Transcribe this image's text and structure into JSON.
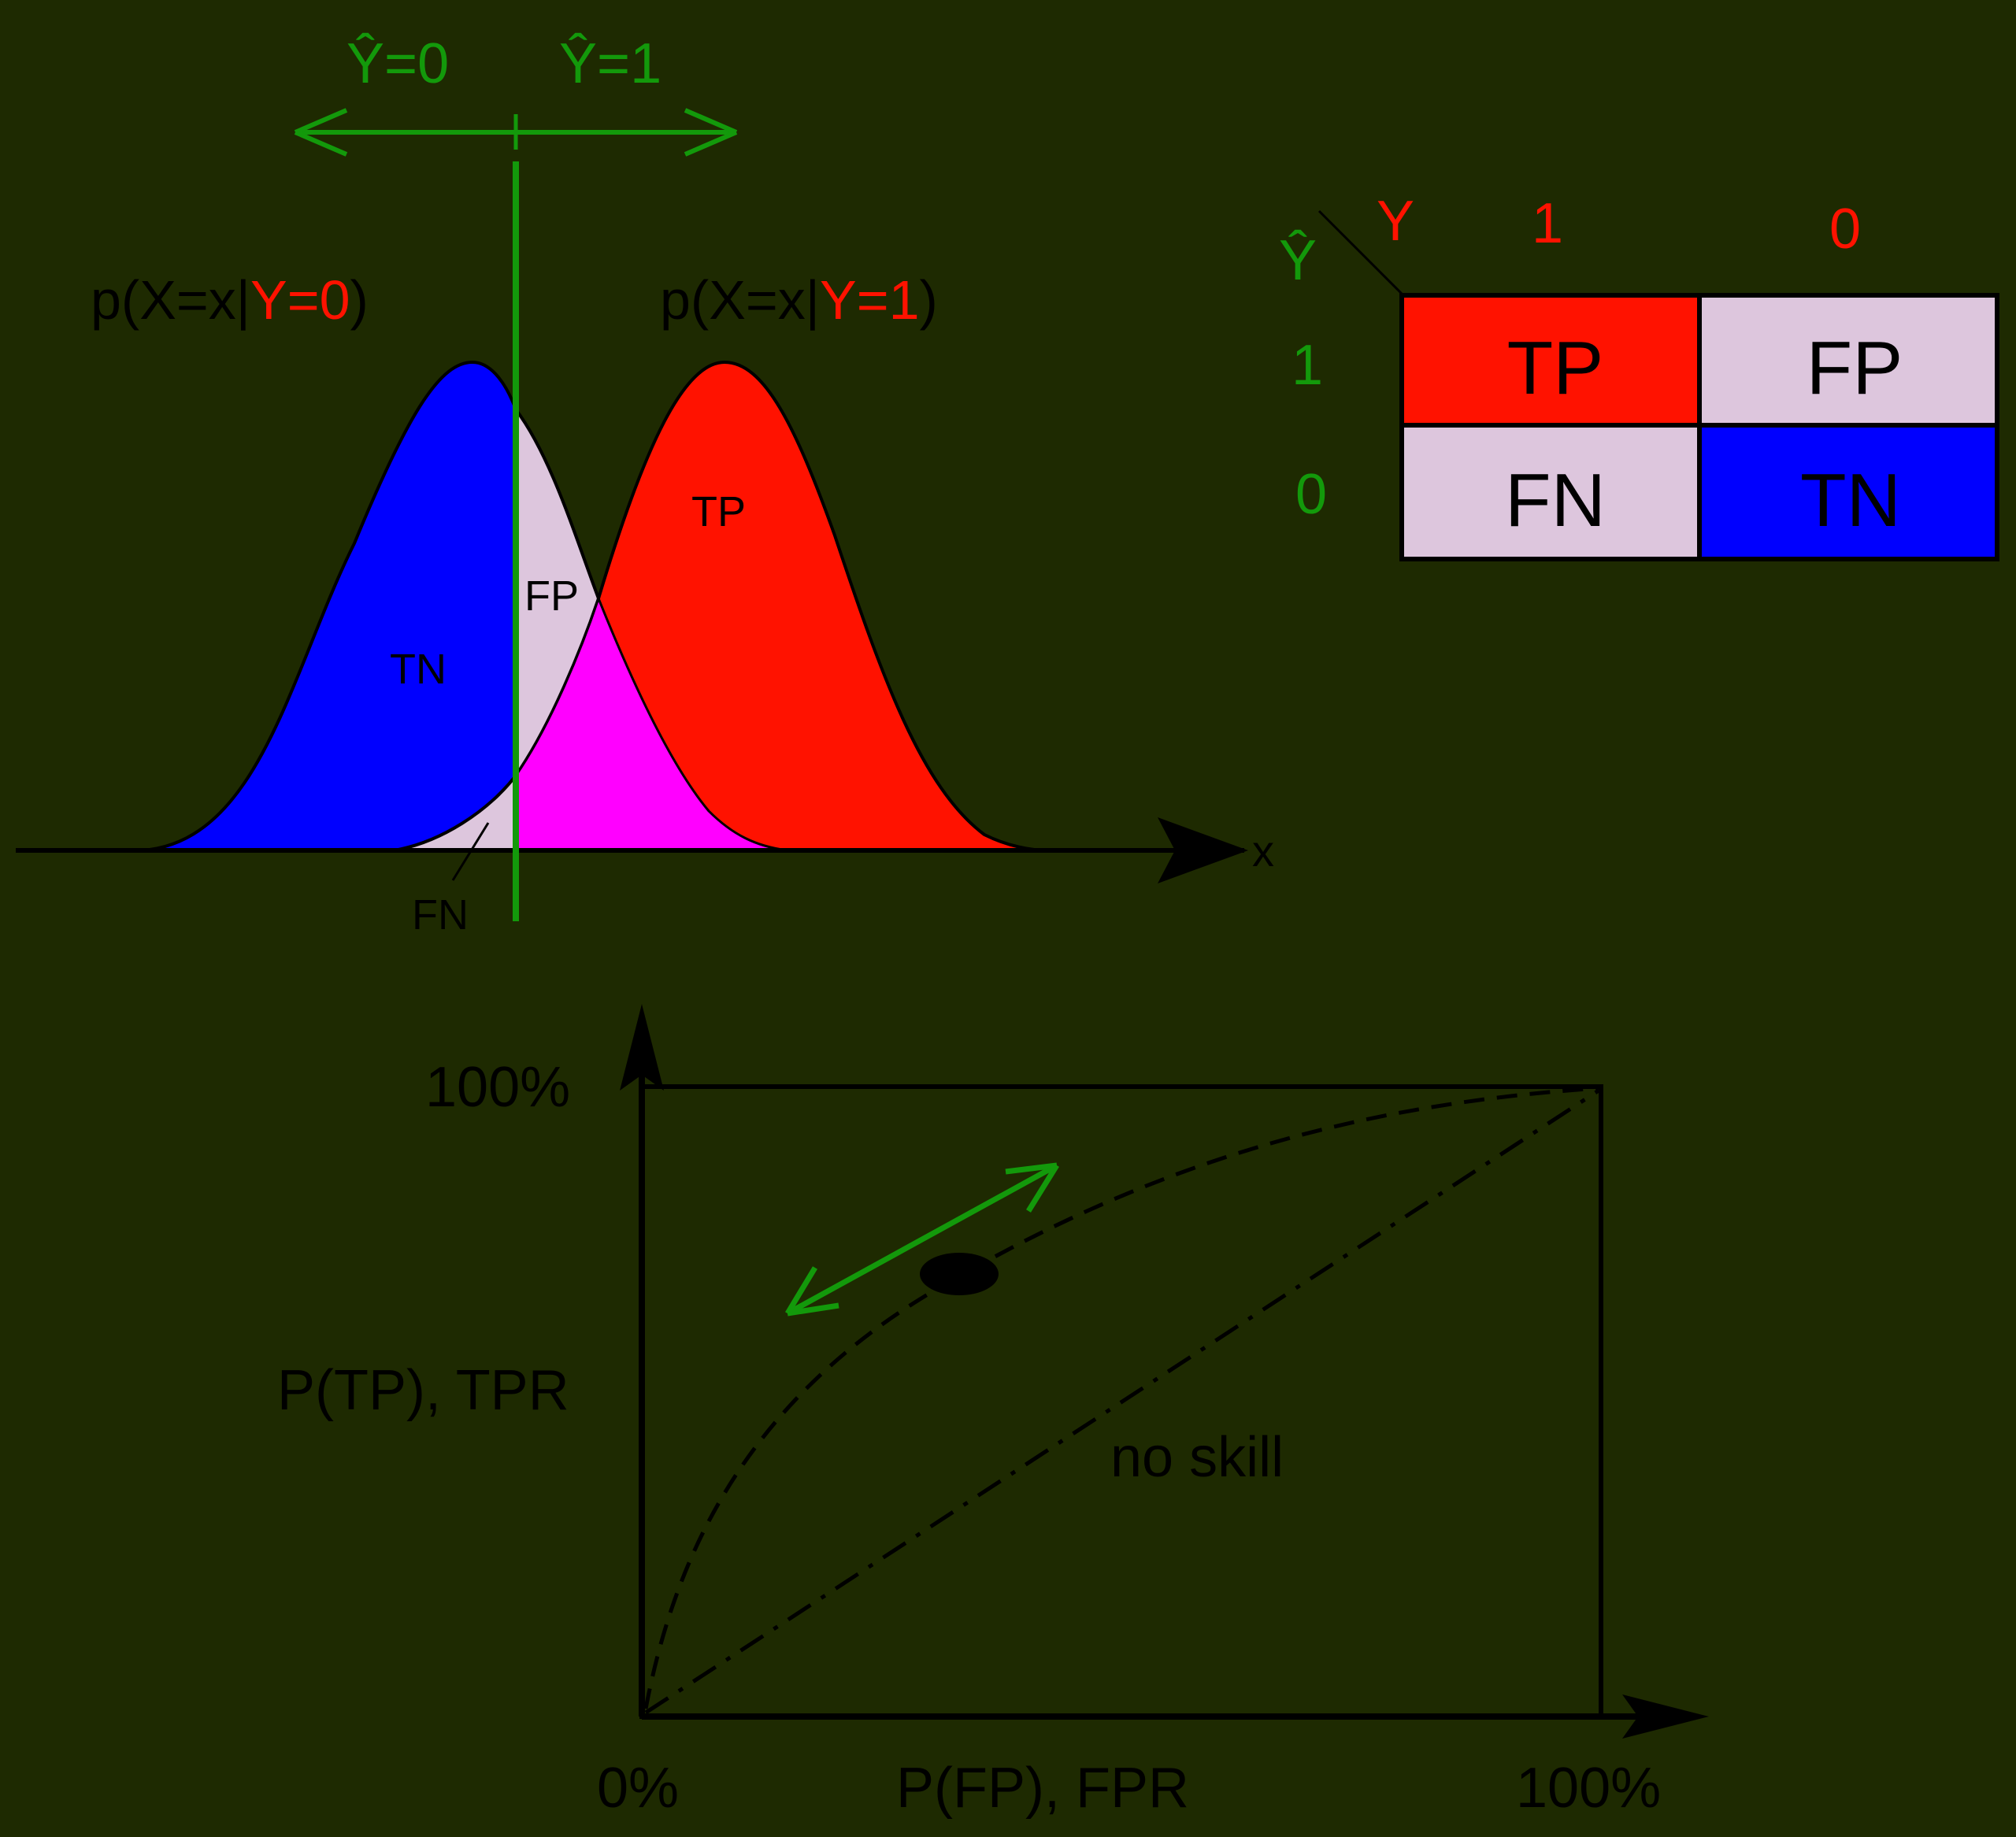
{
  "colors": {
    "background": "#1e2a01",
    "ink": "#000000",
    "threshold_green": "#13990b",
    "positive_red": "#ff1200",
    "negative_blue": "#0000ff",
    "overlap_lilac": "#ddc6dd",
    "overlap_magenta": "#ff00ff"
  },
  "distributions": {
    "threshold_top_labels": {
      "predicted_negative": "Ŷ=0",
      "predicted_positive": "Ŷ=1"
    },
    "class0_label": {
      "prefix": "p(X=x|",
      "condition": "Y=0",
      "suffix": ")"
    },
    "class1_label": {
      "prefix": "p(X=x|",
      "condition": "Y=1",
      "suffix": ")"
    },
    "region_labels": {
      "tp": "TP",
      "fp": "FP",
      "tn": "TN",
      "fn": "FN"
    },
    "x_axis_label": "x"
  },
  "confusion_matrix": {
    "actual_header": "Y",
    "predicted_header": "Ŷ",
    "actual_values": [
      "1",
      "0"
    ],
    "predicted_values": [
      "1",
      "0"
    ],
    "cells": {
      "tp": "TP",
      "fp": "FP",
      "fn": "FN",
      "tn": "TN"
    }
  },
  "roc": {
    "y_axis_label": "P(TP), TPR",
    "x_axis_label": "P(FP), FPR",
    "y_max_label": "100%",
    "x_min_label": "0%",
    "x_max_label": "100%",
    "no_skill_label": "no skill"
  }
}
